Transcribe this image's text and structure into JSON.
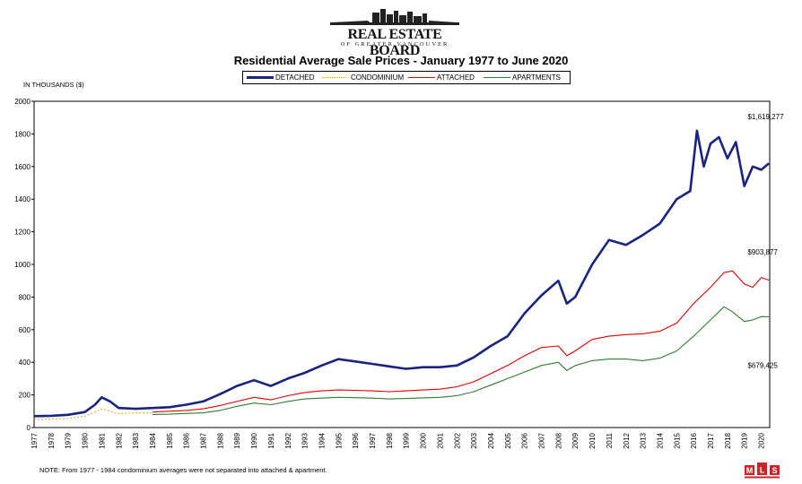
{
  "logo": {
    "title": "REAL ESTATE BOARD",
    "subtitle": "OF GREATER VANCOUVER"
  },
  "mls_logo_text": "MLS",
  "chart_data": {
    "type": "line",
    "title": "Residential Average Sale Prices  - January 1977 to June 2020",
    "ylabel": "IN THOUSANDS ($)",
    "xlabel": "",
    "ylim": [
      0,
      2000
    ],
    "xlim": [
      1977,
      2020.5
    ],
    "yticks": [
      0,
      200,
      400,
      600,
      800,
      1000,
      1200,
      1400,
      1600,
      1800,
      2000
    ],
    "xticks": [
      "1977",
      "1978",
      "1979",
      "1980",
      "1981",
      "1982",
      "1983",
      "1984",
      "1985",
      "1986",
      "1987",
      "1988",
      "1989",
      "1990",
      "1991",
      "1992",
      "1993",
      "1994",
      "1995",
      "1996",
      "1997",
      "1998",
      "1999",
      "2000",
      "2001",
      "2002",
      "2003",
      "2004",
      "2005",
      "2006",
      "2007",
      "2008",
      "2009",
      "2010",
      "2011",
      "2012",
      "2013",
      "2014",
      "2015",
      "2016",
      "2017",
      "2018",
      "2019",
      "2020"
    ],
    "grid": true,
    "legend_position": "top-center",
    "series": [
      {
        "name": "DETACHED",
        "color": "#1a237e",
        "style": "solid-thick",
        "x": [
          1977,
          1978,
          1979,
          1980,
          1980.6,
          1981.0,
          1981.5,
          1982,
          1983,
          1984,
          1985,
          1986,
          1987,
          1988,
          1989,
          1990,
          1991,
          1992,
          1993,
          1994,
          1995,
          1996,
          1997,
          1998,
          1999,
          2000,
          2001,
          2002,
          2003,
          2004,
          2005,
          2006,
          2007,
          2008,
          2008.5,
          2009,
          2010,
          2011,
          2012,
          2013,
          2014,
          2015,
          2015.8,
          2016.2,
          2016.6,
          2017,
          2017.5,
          2018,
          2018.5,
          2019,
          2019.5,
          2020,
          2020.45
        ],
        "y": [
          70,
          72,
          78,
          95,
          140,
          185,
          160,
          120,
          115,
          120,
          125,
          140,
          160,
          205,
          255,
          290,
          255,
          300,
          335,
          380,
          420,
          405,
          390,
          375,
          360,
          370,
          370,
          380,
          430,
          500,
          560,
          700,
          810,
          900,
          760,
          800,
          1000,
          1150,
          1120,
          1180,
          1250,
          1400,
          1450,
          1820,
          1600,
          1740,
          1780,
          1650,
          1750,
          1480,
          1600,
          1580,
          1619
        ]
      },
      {
        "name": "CONDOMINIUM",
        "color": "#f5a623",
        "style": "dotted",
        "x": [
          1977,
          1978,
          1979,
          1980,
          1980.6,
          1981.0,
          1981.5,
          1982,
          1983,
          1984
        ],
        "y": [
          50,
          52,
          55,
          70,
          95,
          115,
          100,
          85,
          90,
          90
        ]
      },
      {
        "name": "ATTACHED",
        "color": "#e00000",
        "style": "solid",
        "x": [
          1984,
          1985,
          1986,
          1987,
          1988,
          1989,
          1990,
          1991,
          1992,
          1993,
          1994,
          1995,
          1996,
          1997,
          1998,
          1999,
          2000,
          2001,
          2002,
          2003,
          2004,
          2005,
          2006,
          2007,
          2008,
          2008.5,
          2009,
          2010,
          2011,
          2012,
          2013,
          2014,
          2015,
          2016,
          2017,
          2017.8,
          2018.3,
          2019,
          2019.5,
          2020,
          2020.45
        ],
        "y": [
          95,
          100,
          105,
          115,
          135,
          160,
          185,
          170,
          195,
          215,
          225,
          230,
          228,
          225,
          220,
          225,
          230,
          235,
          250,
          280,
          330,
          380,
          440,
          490,
          500,
          440,
          470,
          540,
          560,
          570,
          575,
          590,
          640,
          760,
          860,
          950,
          960,
          880,
          860,
          920,
          904
        ]
      },
      {
        "name": "APARTMENTS",
        "color": "#2e7d32",
        "style": "solid",
        "x": [
          1984,
          1985,
          1986,
          1987,
          1988,
          1989,
          1990,
          1991,
          1992,
          1993,
          1994,
          1995,
          1996,
          1997,
          1998,
          1999,
          2000,
          2001,
          2002,
          2003,
          2004,
          2005,
          2006,
          2007,
          2008,
          2008.5,
          2009,
          2010,
          2011,
          2012,
          2013,
          2014,
          2015,
          2016,
          2017,
          2017.8,
          2018.3,
          2019,
          2019.5,
          2020,
          2020.45
        ],
        "y": [
          80,
          82,
          86,
          90,
          105,
          130,
          150,
          140,
          160,
          175,
          180,
          185,
          183,
          180,
          175,
          178,
          182,
          185,
          195,
          220,
          260,
          300,
          340,
          380,
          400,
          350,
          380,
          410,
          420,
          420,
          410,
          425,
          470,
          560,
          660,
          740,
          710,
          650,
          660,
          680,
          679
        ]
      }
    ],
    "annotations": [
      {
        "text": "$1,619,277",
        "x": 2019.2,
        "y": 1890
      },
      {
        "text": "$903,877",
        "x": 2019.2,
        "y": 1060
      },
      {
        "text": "$679,425",
        "x": 2019.2,
        "y": 365
      }
    ]
  },
  "footnote": "NOTE:  From 1977 - 1984 condominium averages were not separated into attached & apartment."
}
